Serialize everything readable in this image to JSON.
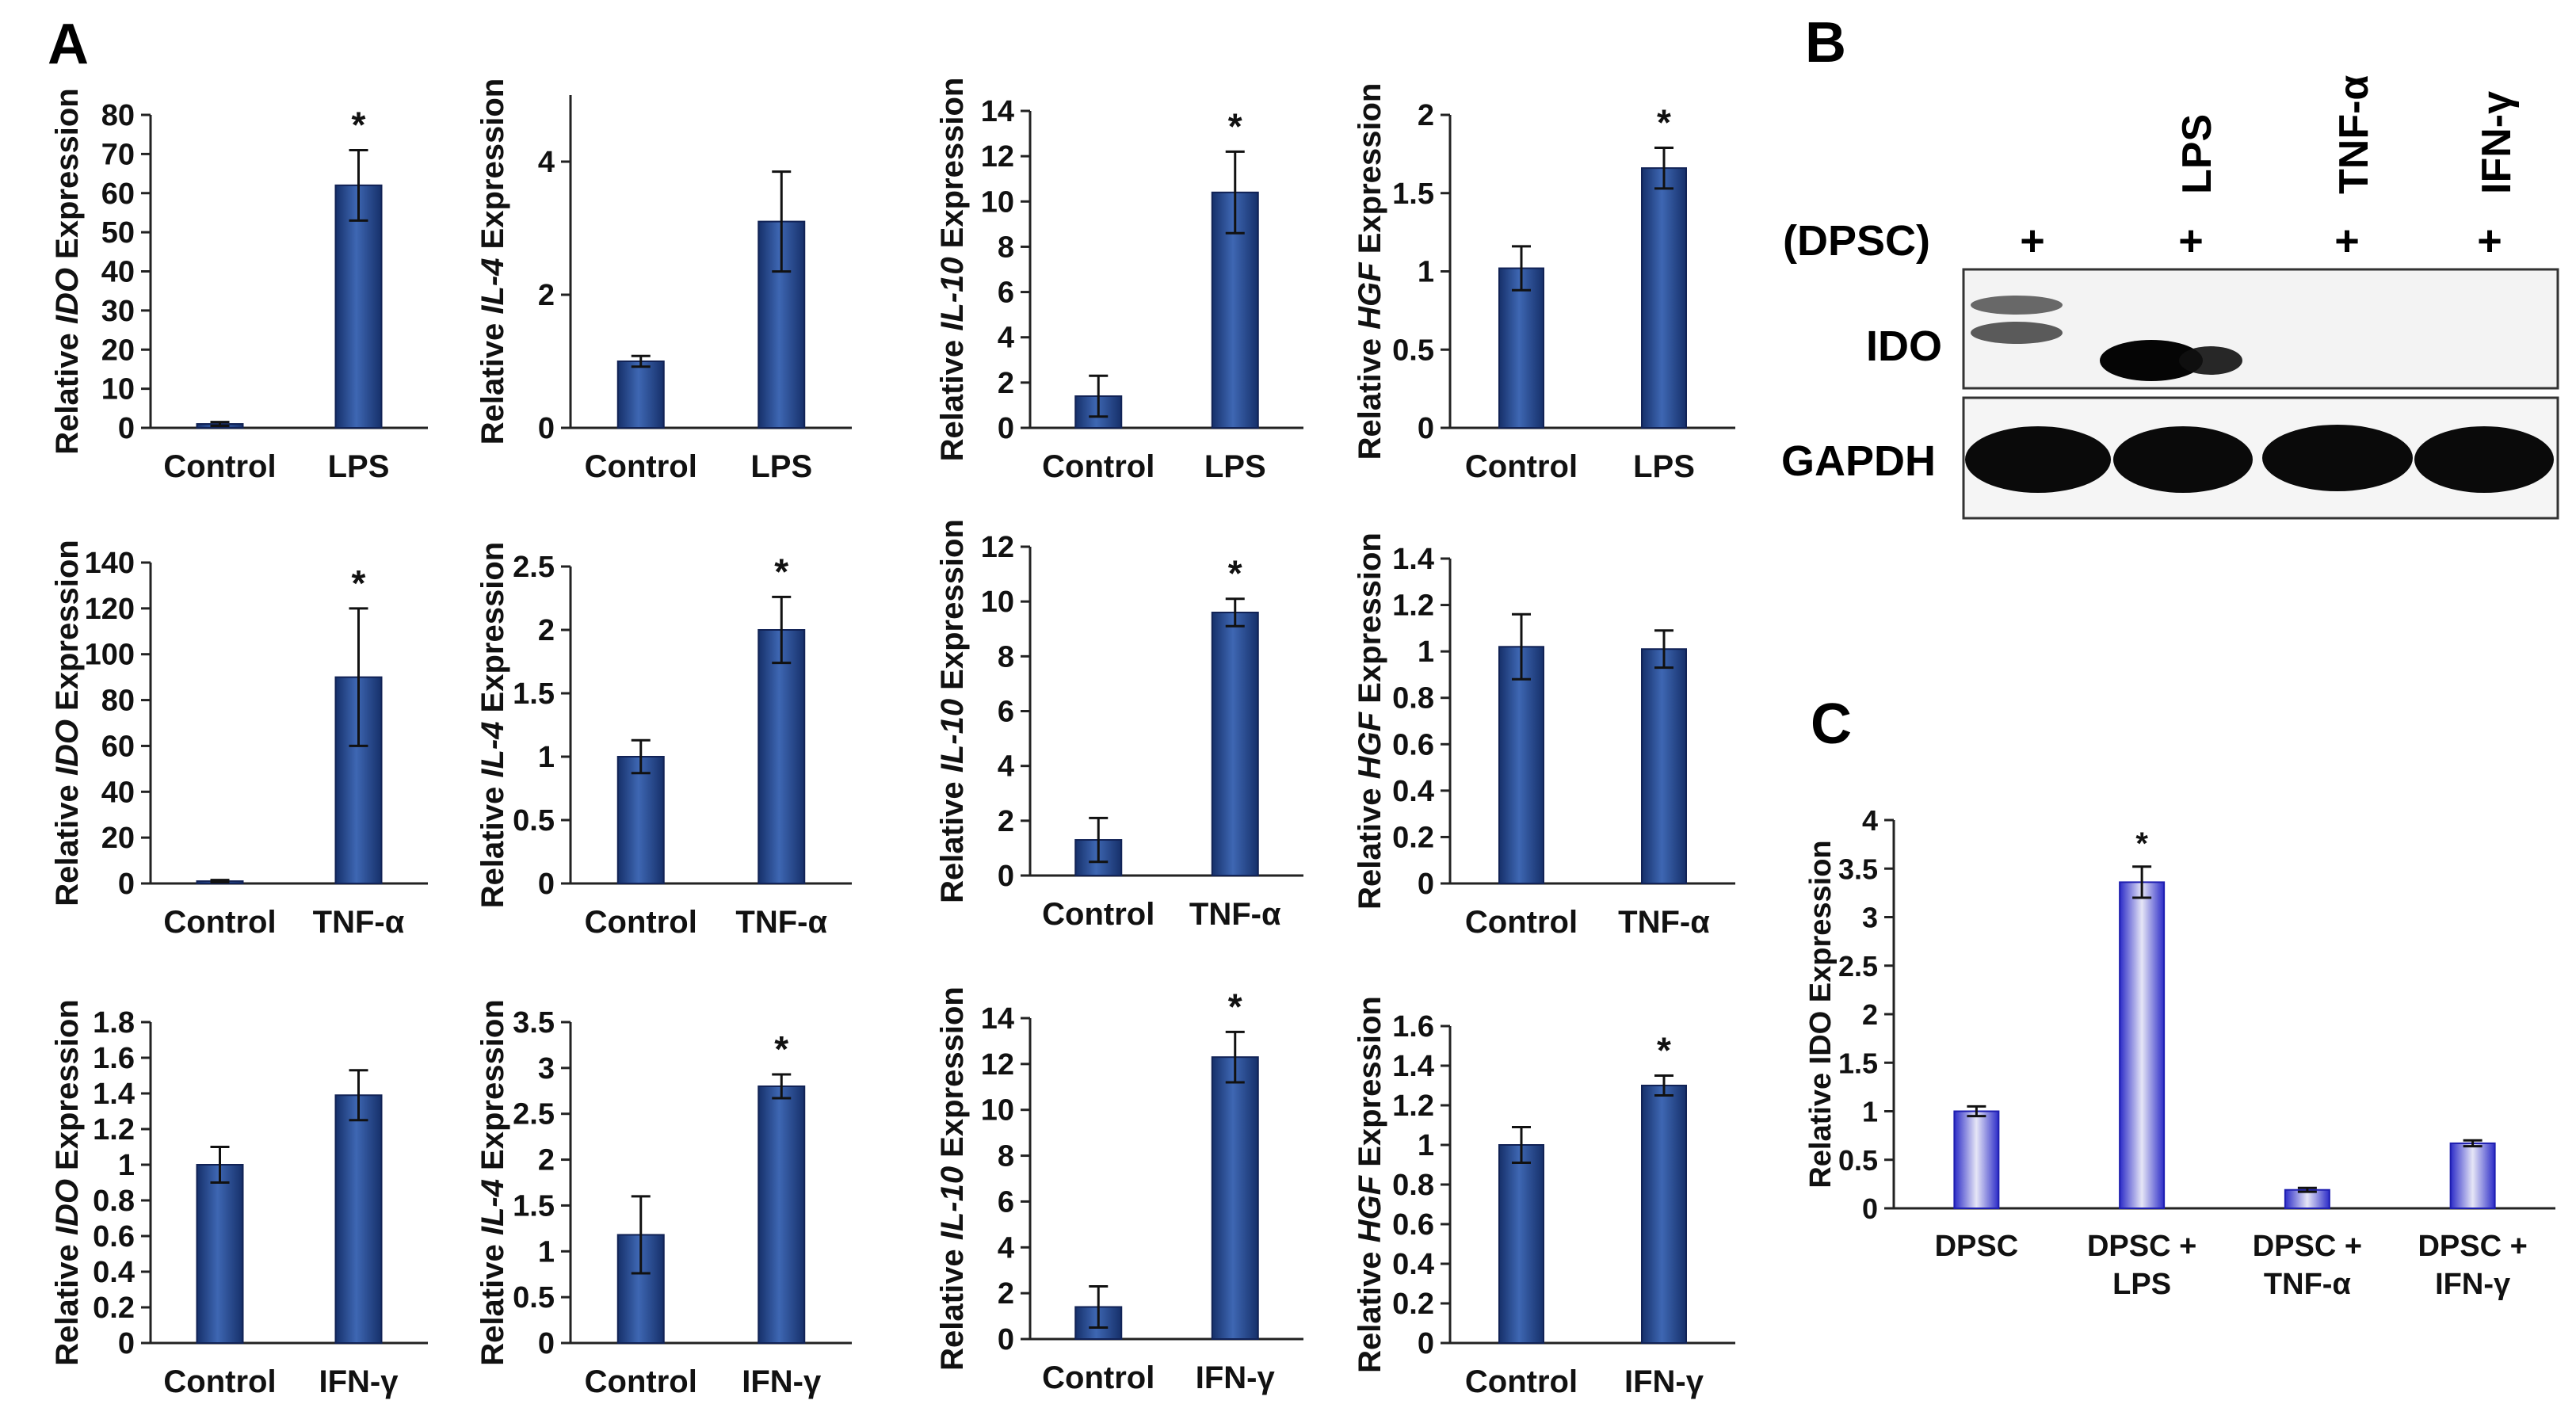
{
  "panels": {
    "A": "A",
    "B": "B",
    "C": "C"
  },
  "colors": {
    "bar_dark": "#1f3d78",
    "bar_light": "#3a64b0",
    "axis": "#222222",
    "blot_bg": "#f2f2f2",
    "band": "#0a0a0a"
  },
  "chart_data": [
    {
      "id": "r1c1",
      "type": "bar",
      "ylabel_pre": "Relative ",
      "ylabel_gene": "IDO",
      "ylabel_post": " Expression",
      "ylim": [
        0,
        80
      ],
      "yticks": [
        "0",
        "10",
        "20",
        "30",
        "40",
        "50",
        "60",
        "70",
        "80"
      ],
      "categories": [
        "Control",
        "LPS"
      ],
      "values": [
        1,
        62
      ],
      "errors": [
        0.5,
        9
      ],
      "stars": [
        "",
        "*"
      ]
    },
    {
      "id": "r1c2",
      "type": "bar",
      "ylabel_pre": "Relative ",
      "ylabel_gene": "IL-4",
      "ylabel_post": " Expression",
      "ylim": [
        0,
        5
      ],
      "yticks": [
        "0",
        "2",
        "4"
      ],
      "ytickvals": [
        0,
        2,
        4
      ],
      "categories": [
        "Control",
        "LPS"
      ],
      "values": [
        1,
        3.1
      ],
      "errors": [
        0.08,
        0.75
      ],
      "stars": [
        "",
        ""
      ]
    },
    {
      "id": "r1c3",
      "type": "bar",
      "ylabel_pre": "Relative ",
      "ylabel_gene": "IL-10",
      "ylabel_post": " Expression",
      "ylim": [
        0,
        14
      ],
      "yticks": [
        "0",
        "2",
        "4",
        "6",
        "8",
        "10",
        "12",
        "14"
      ],
      "categories": [
        "Control",
        "LPS"
      ],
      "values": [
        1.4,
        10.4
      ],
      "errors": [
        0.9,
        1.8
      ],
      "stars": [
        "",
        "*"
      ]
    },
    {
      "id": "r1c4",
      "type": "bar",
      "ylabel_pre": "Relative ",
      "ylabel_gene": "HGF",
      "ylabel_post": " Expression",
      "ylim": [
        0,
        2
      ],
      "yticks": [
        "0",
        "0.5",
        "1",
        "1.5",
        "2"
      ],
      "categories": [
        "Control",
        "LPS"
      ],
      "values": [
        1.02,
        1.66
      ],
      "errors": [
        0.14,
        0.13
      ],
      "stars": [
        "",
        "*"
      ]
    },
    {
      "id": "r2c1",
      "type": "bar",
      "ylabel_pre": "Relative ",
      "ylabel_gene": "IDO",
      "ylabel_post": " Expression",
      "ylim": [
        0,
        140
      ],
      "yticks": [
        "0",
        "20",
        "40",
        "60",
        "80",
        "100",
        "120",
        "140"
      ],
      "categories": [
        "Control",
        "TNF-α"
      ],
      "values": [
        1,
        90
      ],
      "errors": [
        0.5,
        30
      ],
      "stars": [
        "",
        "*"
      ]
    },
    {
      "id": "r2c2",
      "type": "bar",
      "ylabel_pre": "Relative ",
      "ylabel_gene": "IL-4",
      "ylabel_post": " Expression",
      "ylim": [
        0,
        2.5
      ],
      "yticks": [
        "0",
        "0.5",
        "1",
        "1.5",
        "2",
        "2.5"
      ],
      "categories": [
        "Control",
        "TNF-α"
      ],
      "values": [
        1,
        2
      ],
      "errors": [
        0.13,
        0.26
      ],
      "stars": [
        "",
        "*"
      ]
    },
    {
      "id": "r2c3",
      "type": "bar",
      "ylabel_pre": "Relative ",
      "ylabel_gene": "IL-10",
      "ylabel_post": " Expression",
      "ylim": [
        0,
        12
      ],
      "yticks": [
        "0",
        "2",
        "4",
        "6",
        "8",
        "10",
        "12"
      ],
      "categories": [
        "Control",
        "TNF-α"
      ],
      "values": [
        1.3,
        9.6
      ],
      "errors": [
        0.8,
        0.5
      ],
      "stars": [
        "",
        "*"
      ]
    },
    {
      "id": "r2c4",
      "type": "bar",
      "ylabel_pre": "Relative ",
      "ylabel_gene": "HGF",
      "ylabel_post": " Expression",
      "ylim": [
        0,
        1.4
      ],
      "yticks": [
        "0",
        "0.2",
        "0.4",
        "0.6",
        "0.8",
        "1",
        "1.2",
        "1.4"
      ],
      "categories": [
        "Control",
        "TNF-α"
      ],
      "values": [
        1.02,
        1.01
      ],
      "errors": [
        0.14,
        0.08
      ],
      "stars": [
        "",
        ""
      ]
    },
    {
      "id": "r3c1",
      "type": "bar",
      "ylabel_pre": "Relative ",
      "ylabel_gene": "IDO",
      "ylabel_post": " Expression",
      "ylim": [
        0,
        1.8
      ],
      "yticks": [
        "0",
        "0.2",
        "0.4",
        "0.6",
        "0.8",
        "1",
        "1.2",
        "1.4",
        "1.6",
        "1.8"
      ],
      "categories": [
        "Control",
        "IFN-γ"
      ],
      "values": [
        1,
        1.39
      ],
      "errors": [
        0.1,
        0.14
      ],
      "stars": [
        "",
        ""
      ]
    },
    {
      "id": "r3c2",
      "type": "bar",
      "ylabel_pre": "Relative ",
      "ylabel_gene": "IL-4",
      "ylabel_post": " Expression",
      "ylim": [
        0,
        3.5
      ],
      "yticks": [
        "0",
        "0.5",
        "1",
        "1.5",
        "2",
        "2.5",
        "3",
        "3.5"
      ],
      "categories": [
        "Control",
        "IFN-γ"
      ],
      "values": [
        1.18,
        2.8
      ],
      "errors": [
        0.42,
        0.13
      ],
      "stars": [
        "",
        "*"
      ]
    },
    {
      "id": "r3c3",
      "type": "bar",
      "ylabel_pre": "Relative ",
      "ylabel_gene": "IL-10",
      "ylabel_post": " Expression",
      "ylim": [
        0,
        14
      ],
      "yticks": [
        "0",
        "2",
        "4",
        "6",
        "8",
        "10",
        "12",
        "14"
      ],
      "categories": [
        "Control",
        "IFN-γ"
      ],
      "values": [
        1.4,
        12.3
      ],
      "errors": [
        0.9,
        1.1
      ],
      "stars": [
        "",
        "*"
      ]
    },
    {
      "id": "r3c4",
      "type": "bar",
      "ylabel_pre": "Relative ",
      "ylabel_gene": "HGF",
      "ylabel_post": " Expression",
      "ylim": [
        0,
        1.6
      ],
      "yticks": [
        "0",
        "0.2",
        "0.4",
        "0.6",
        "0.8",
        "1",
        "1.2",
        "1.4",
        "1.6"
      ],
      "categories": [
        "Control",
        "IFN-γ"
      ],
      "values": [
        1,
        1.3
      ],
      "errors": [
        0.09,
        0.05
      ],
      "stars": [
        "",
        "*"
      ]
    },
    {
      "id": "c",
      "type": "bar",
      "ylabel": "Relative IDO Expression",
      "ylim": [
        0,
        4
      ],
      "yticks": [
        "0",
        "0.5",
        "1",
        "1.5",
        "2",
        "2.5",
        "3",
        "3.5",
        "4"
      ],
      "categories": [
        [
          "DPSC"
        ],
        [
          "DPSC +",
          "LPS"
        ],
        [
          "DPSC +",
          "TNF-α"
        ],
        [
          "DPSC +",
          "IFN-γ"
        ]
      ],
      "values": [
        1,
        3.36,
        0.19,
        0.67
      ],
      "errors": [
        0.05,
        0.16,
        0.02,
        0.03
      ],
      "stars": [
        "",
        "*",
        "",
        ""
      ]
    }
  ],
  "western_blot": {
    "lane_labels": [
      "LPS",
      "TNF-α",
      "IFN-γ"
    ],
    "dpsc_label": "(DPSC)",
    "plus_signs": [
      "+",
      "+",
      "+",
      "+"
    ],
    "rows": [
      "IDO",
      "GAPDH"
    ]
  }
}
